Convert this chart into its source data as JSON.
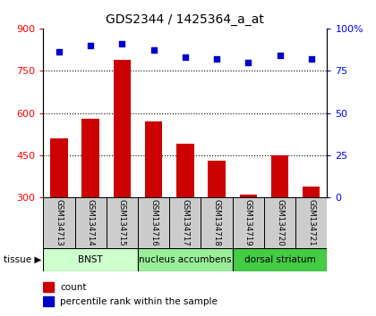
{
  "title": "GDS2344 / 1425364_a_at",
  "samples": [
    "GSM134713",
    "GSM134714",
    "GSM134715",
    "GSM134716",
    "GSM134717",
    "GSM134718",
    "GSM134719",
    "GSM134720",
    "GSM134721"
  ],
  "counts": [
    510,
    580,
    790,
    570,
    490,
    430,
    310,
    450,
    340
  ],
  "percentiles": [
    86,
    90,
    91,
    87,
    83,
    82,
    80,
    84,
    82
  ],
  "ylim_left": [
    300,
    900
  ],
  "ylim_right": [
    0,
    100
  ],
  "yticks_left": [
    300,
    450,
    600,
    750,
    900
  ],
  "yticks_right": [
    0,
    25,
    50,
    75,
    100
  ],
  "bar_color": "#cc0000",
  "dot_color": "#0000cc",
  "tissue_groups": [
    {
      "label": "BNST",
      "start": 0,
      "end": 3,
      "color": "#ccffcc"
    },
    {
      "label": "nucleus accumbens",
      "start": 3,
      "end": 6,
      "color": "#99ee99"
    },
    {
      "label": "dorsal striatum",
      "start": 6,
      "end": 9,
      "color": "#44cc44"
    }
  ],
  "legend_items": [
    {
      "color": "#cc0000",
      "label": "count"
    },
    {
      "color": "#0000cc",
      "label": "percentile rank within the sample"
    }
  ],
  "sample_box_color": "#cccccc",
  "tissue_label": "tissue",
  "gridlines": [
    450,
    600,
    750
  ],
  "title_fontsize": 10,
  "tick_fontsize": 8,
  "bar_width": 0.55
}
